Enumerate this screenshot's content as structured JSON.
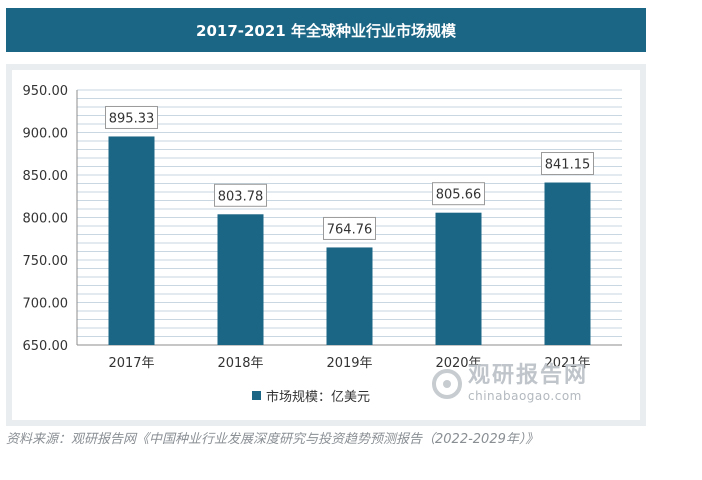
{
  "chart_data": {
    "type": "bar",
    "title": "2017-2021 年全球种业行业市场规模",
    "categories": [
      "2017年",
      "2018年",
      "2019年",
      "2020年",
      "2021年"
    ],
    "series": [
      {
        "name": "市场规模：亿美元",
        "values": [
          895.33,
          803.78,
          764.76,
          805.66,
          841.15
        ]
      }
    ],
    "value_labels": [
      "895.33",
      "803.78",
      "764.76",
      "805.66",
      "841.15"
    ],
    "yticks": [
      "650.00",
      "700.00",
      "750.00",
      "800.00",
      "850.00",
      "900.00",
      "950.00"
    ],
    "ylim": [
      650,
      950
    ],
    "xlabel": "",
    "ylabel": "",
    "grid": true,
    "legend_position": "bottom",
    "bar_color": "#1b6585"
  },
  "watermark": {
    "name": "观研报告网",
    "url": "chinabaogao.com"
  },
  "source": "资料来源：观研报告网《中国种业行业发展深度研究与投资趋势预测报告（2022-2029年）》"
}
